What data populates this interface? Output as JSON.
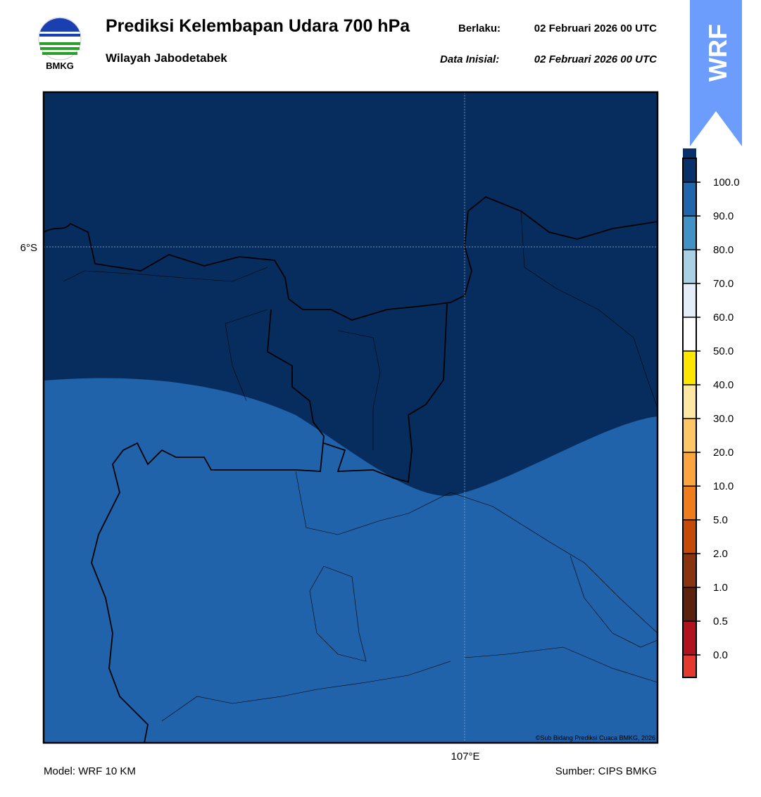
{
  "header": {
    "title": "Prediksi Kelembapan Udara 700 hPa",
    "subtitle": "Wilayah Jabodetabek",
    "valid_label": "Berlaku:",
    "valid_time": "02 Februari 2026 00 UTC",
    "init_label": "Data Inisial:",
    "init_time": "02 Februari 2026 00 UTC",
    "logo_text": "BMKG",
    "badge": "WRF"
  },
  "map": {
    "lat_label": "6°S",
    "lon_label": "107°E",
    "copyright": "©Sub Bidang Prediksi Cuaca BMKG, 2026"
  },
  "legend": {
    "labels": [
      "0.0",
      "0.5",
      "1.0",
      "2.0",
      "5.0",
      "10.0",
      "20.0",
      "30.0",
      "40.0",
      "50.0",
      "60.0",
      "70.0",
      "80.0",
      "90.0",
      "100.0"
    ],
    "colors": [
      "#e5392f",
      "#b0131b",
      "#5c2210",
      "#8a3310",
      "#c54a0a",
      "#f07d1c",
      "#fca53f",
      "#fdc768",
      "#fde7a5",
      "#fde600",
      "#ffffff",
      "#e3eef8",
      "#a8d1e6",
      "#4392c6",
      "#2166ac",
      "#08306b",
      "#2d0b51"
    ]
  },
  "footer": {
    "model": "Model: WRF 10 KM",
    "source": "Sumber: CIPS BMKG"
  }
}
